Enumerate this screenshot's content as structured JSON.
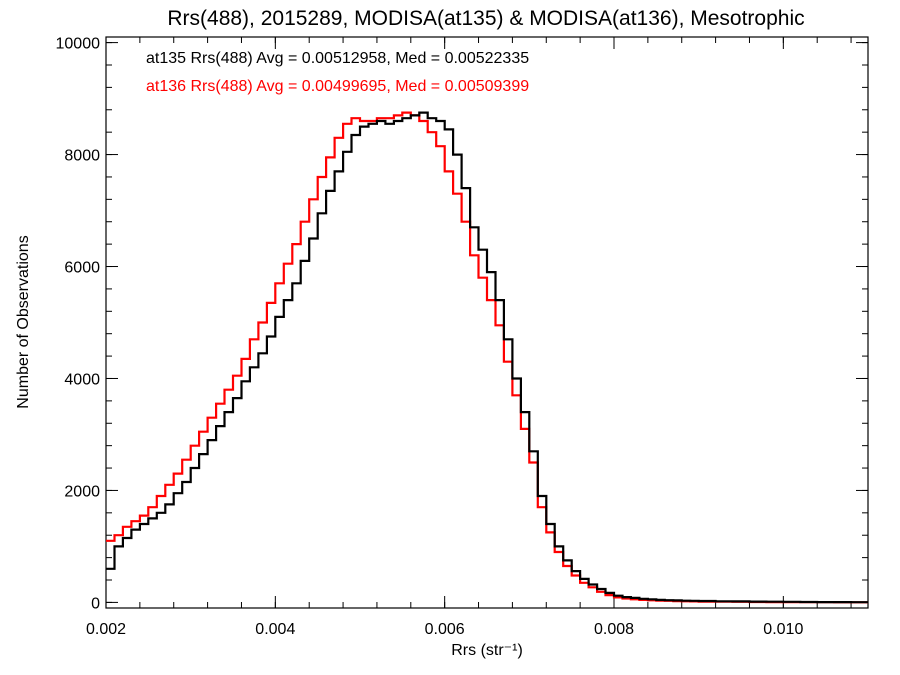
{
  "chart_data": {
    "type": "line",
    "title": "Rrs(488), 2015289, MODISA(at135) & MODISA(at136), Mesotrophic",
    "xlabel": "Rrs (str⁻¹)",
    "ylabel": "Number of Observations",
    "xlim": [
      0.002,
      0.011
    ],
    "ylim": [
      -100,
      10100
    ],
    "xticks": [
      "0.002",
      "0.004",
      "0.006",
      "0.008",
      "0.010"
    ],
    "yticks": [
      "0",
      "2000",
      "4000",
      "6000",
      "8000",
      "10000"
    ],
    "grid": false,
    "legend_placement": "top-left",
    "series": [
      {
        "name": "at135 Rrs(488) Avg = 0.00512958, Med = 0.00522335",
        "color": "#000000",
        "x": [
          0.002,
          0.0021,
          0.0022,
          0.0023,
          0.0024,
          0.0025,
          0.0026,
          0.0027,
          0.0028,
          0.0029,
          0.003,
          0.0031,
          0.0032,
          0.0033,
          0.0034,
          0.0035,
          0.0036,
          0.0037,
          0.0038,
          0.0039,
          0.004,
          0.0041,
          0.0042,
          0.0043,
          0.0044,
          0.0045,
          0.0046,
          0.0047,
          0.0048,
          0.0049,
          0.005,
          0.0051,
          0.0052,
          0.0053,
          0.0054,
          0.0055,
          0.0056,
          0.0057,
          0.0058,
          0.0059,
          0.006,
          0.0061,
          0.0062,
          0.0063,
          0.0064,
          0.0065,
          0.0066,
          0.0067,
          0.0068,
          0.0069,
          0.007,
          0.0071,
          0.0072,
          0.0073,
          0.0074,
          0.0075,
          0.0076,
          0.0077,
          0.0078,
          0.0079,
          0.008,
          0.0081,
          0.0082,
          0.0083,
          0.0084,
          0.0085,
          0.0086,
          0.0087,
          0.0088,
          0.0089,
          0.009,
          0.0092,
          0.0094,
          0.0096,
          0.0098,
          0.01,
          0.0102,
          0.0104,
          0.0106,
          0.0108,
          0.011
        ],
        "y": [
          600,
          1000,
          1150,
          1300,
          1400,
          1500,
          1600,
          1750,
          1950,
          2150,
          2400,
          2650,
          2900,
          3150,
          3400,
          3650,
          3950,
          4200,
          4450,
          4750,
          5100,
          5400,
          5700,
          6100,
          6500,
          6950,
          7350,
          7700,
          8050,
          8350,
          8500,
          8550,
          8600,
          8550,
          8600,
          8650,
          8700,
          8750,
          8650,
          8600,
          8450,
          8000,
          7400,
          6700,
          6300,
          5900,
          5400,
          4700,
          4000,
          3400,
          2700,
          1900,
          1400,
          1000,
          750,
          560,
          420,
          320,
          240,
          170,
          120,
          95,
          80,
          65,
          55,
          45,
          40,
          35,
          30,
          28,
          25,
          20,
          18,
          15,
          12,
          10,
          8,
          6,
          5,
          4,
          3
        ]
      },
      {
        "name": "at136 Rrs(488) Avg = 0.00499695, Med = 0.00509399",
        "color": "#ff0000",
        "x": [
          0.002,
          0.0021,
          0.0022,
          0.0023,
          0.0024,
          0.0025,
          0.0026,
          0.0027,
          0.0028,
          0.0029,
          0.003,
          0.0031,
          0.0032,
          0.0033,
          0.0034,
          0.0035,
          0.0036,
          0.0037,
          0.0038,
          0.0039,
          0.004,
          0.0041,
          0.0042,
          0.0043,
          0.0044,
          0.0045,
          0.0046,
          0.0047,
          0.0048,
          0.0049,
          0.005,
          0.0051,
          0.0052,
          0.0053,
          0.0054,
          0.0055,
          0.0056,
          0.0057,
          0.0058,
          0.0059,
          0.006,
          0.0061,
          0.0062,
          0.0063,
          0.0064,
          0.0065,
          0.0066,
          0.0067,
          0.0068,
          0.0069,
          0.007,
          0.0071,
          0.0072,
          0.0073,
          0.0074,
          0.0075,
          0.0076,
          0.0077,
          0.0078,
          0.0079,
          0.008,
          0.0081,
          0.0082,
          0.0083,
          0.0084,
          0.0085,
          0.0086,
          0.0087,
          0.0088,
          0.0089,
          0.009,
          0.0092,
          0.0094,
          0.0096,
          0.0098,
          0.01,
          0.0102,
          0.0104,
          0.0106,
          0.0108,
          0.011
        ],
        "y": [
          1100,
          1200,
          1350,
          1450,
          1550,
          1700,
          1900,
          2100,
          2300,
          2550,
          2800,
          3050,
          3300,
          3550,
          3800,
          4050,
          4350,
          4700,
          5000,
          5350,
          5700,
          6050,
          6400,
          6800,
          7200,
          7600,
          7950,
          8300,
          8550,
          8650,
          8600,
          8600,
          8650,
          8650,
          8700,
          8750,
          8700,
          8600,
          8400,
          8150,
          7700,
          7300,
          6800,
          6200,
          5800,
          5400,
          4950,
          4300,
          3700,
          3100,
          2500,
          1700,
          1250,
          900,
          650,
          480,
          350,
          270,
          190,
          130,
          90,
          70,
          55,
          45,
          38,
          32,
          28,
          24,
          20,
          18,
          15,
          12,
          10,
          8,
          6,
          5,
          4,
          3,
          2,
          2,
          1
        ]
      }
    ]
  }
}
